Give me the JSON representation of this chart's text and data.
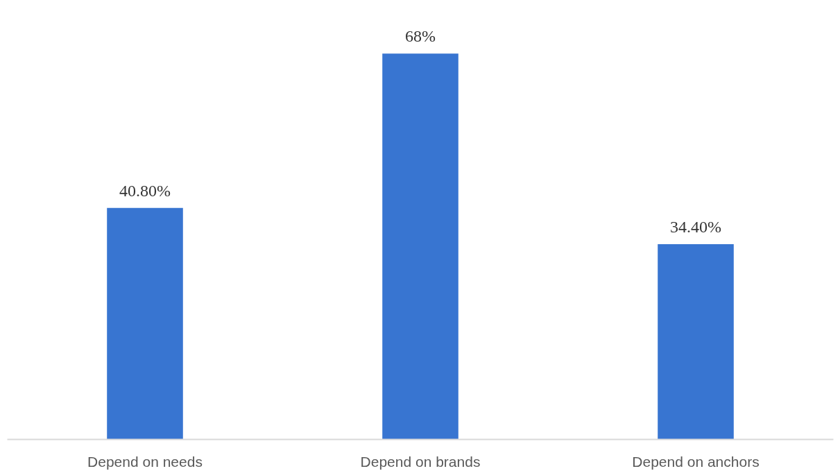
{
  "chart_data": {
    "type": "bar",
    "categories": [
      "Depend on needs",
      "Depend on brands",
      "Depend on anchors"
    ],
    "values": [
      40.8,
      68,
      34.4
    ],
    "value_labels": [
      "40.80%",
      "68%",
      "34.40%"
    ],
    "color": "#3875d1",
    "grid": false
  }
}
